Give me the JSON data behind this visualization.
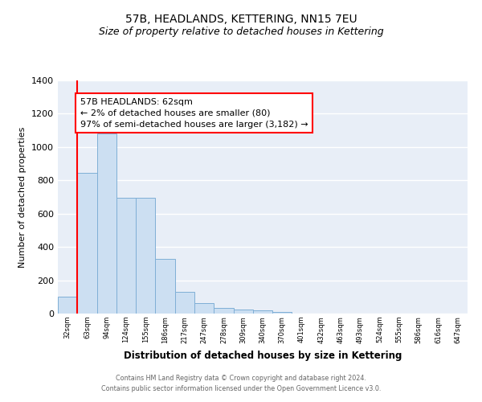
{
  "title": "57B, HEADLANDS, KETTERING, NN15 7EU",
  "subtitle": "Size of property relative to detached houses in Kettering",
  "xlabel": "Distribution of detached houses by size in Kettering",
  "ylabel": "Number of detached properties",
  "bar_values": [
    100,
    845,
    1080,
    693,
    693,
    328,
    130,
    65,
    35,
    25,
    18,
    12,
    0,
    0,
    0,
    0,
    0,
    0,
    0,
    0,
    0
  ],
  "bar_labels": [
    "32sqm",
    "63sqm",
    "94sqm",
    "124sqm",
    "155sqm",
    "186sqm",
    "217sqm",
    "247sqm",
    "278sqm",
    "309sqm",
    "340sqm",
    "370sqm",
    "401sqm",
    "432sqm",
    "463sqm",
    "493sqm",
    "524sqm",
    "555sqm",
    "586sqm",
    "616sqm",
    "647sqm"
  ],
  "bar_color": "#ccdff2",
  "bar_edge_color": "#7fafd6",
  "ylim": [
    0,
    1400
  ],
  "yticks": [
    0,
    200,
    400,
    600,
    800,
    1000,
    1200,
    1400
  ],
  "annotation_title": "57B HEADLANDS: 62sqm",
  "annotation_line1": "← 2% of detached houses are smaller (80)",
  "annotation_line2": "97% of semi-detached houses are larger (3,182) →",
  "footer_line1": "Contains HM Land Registry data © Crown copyright and database right 2024.",
  "footer_line2": "Contains public sector information licensed under the Open Government Licence v3.0.",
  "background_color": "#e8eef7",
  "grid_color": "#ffffff",
  "title_fontsize": 10,
  "subtitle_fontsize": 9
}
